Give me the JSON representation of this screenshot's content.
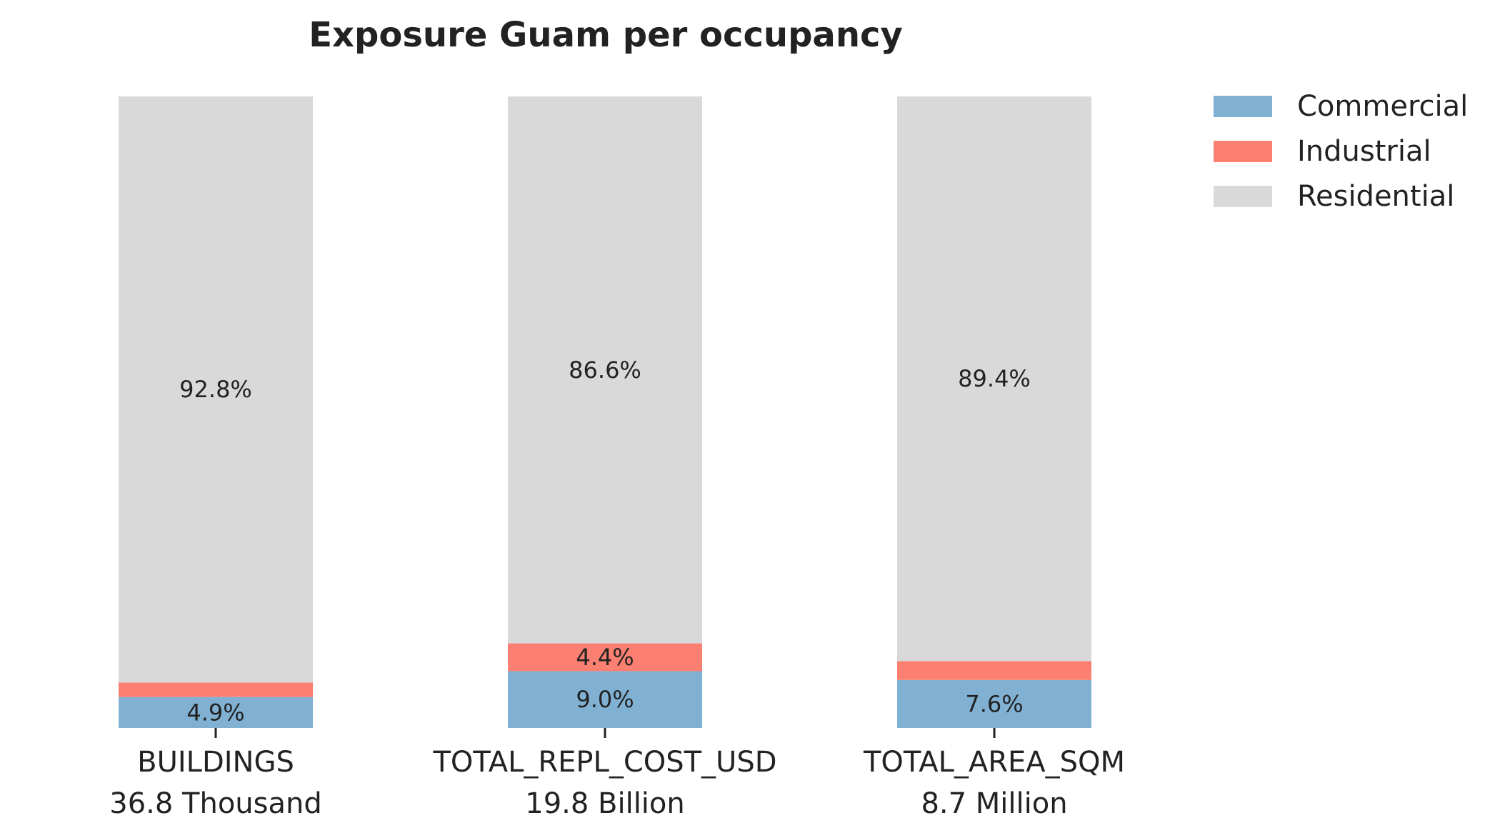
{
  "chart_data": {
    "type": "bar",
    "stacked": true,
    "normalized": true,
    "title": "Exposure Guam per occupancy",
    "xlabel": "",
    "ylabel": "",
    "ylim": [
      0,
      100
    ],
    "grid": false,
    "legend_position": "top-right",
    "categories": [
      "BUILDINGS",
      "TOTAL_REPL_COST_USD",
      "TOTAL_AREA_SQM"
    ],
    "category_totals": [
      "36.8 Thousand",
      "19.8 Billion",
      "8.7 Million"
    ],
    "series": [
      {
        "name": "Commercial",
        "color": "#80b1d3",
        "values": [
          4.9,
          9.0,
          7.6
        ],
        "labels": [
          "4.9%",
          "9.0%",
          "7.6%"
        ]
      },
      {
        "name": "Industrial",
        "color": "#fb8072",
        "values": [
          2.3,
          4.4,
          3.0
        ],
        "labels": [
          "",
          "4.4%",
          ""
        ]
      },
      {
        "name": "Residential",
        "color": "#d9d9d9",
        "values": [
          92.8,
          86.6,
          89.4
        ],
        "labels": [
          "92.8%",
          "86.6%",
          "89.4%"
        ]
      }
    ]
  }
}
